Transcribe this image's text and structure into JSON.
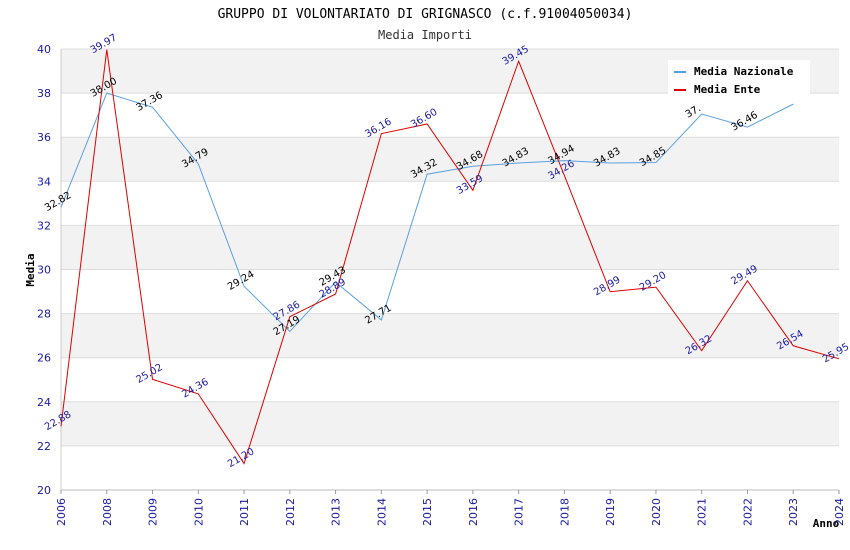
{
  "chart_data": {
    "type": "line",
    "title": "GRUPPO DI VOLONTARIATO DI GRIGNASCO (c.f.91004050034)",
    "subtitle": "Media Importi",
    "xlabel": "Anno",
    "ylabel": "Media",
    "ylim": [
      20,
      40
    ],
    "yticks": [
      20,
      22,
      24,
      26,
      28,
      30,
      32,
      34,
      36,
      38,
      40
    ],
    "categories": [
      "2006",
      "2008",
      "2009",
      "2010",
      "2011",
      "2012",
      "2013",
      "2014",
      "2015",
      "2016",
      "2017",
      "2018",
      "2019",
      "2020",
      "2021",
      "2022",
      "2023",
      "2024"
    ],
    "grid": true,
    "legend_position": "top-right",
    "series": [
      {
        "name": "Media Nazionale",
        "color": "#5aa0e0",
        "label_color": "#000000",
        "values": [
          32.82,
          38.0,
          37.36,
          34.79,
          29.24,
          27.19,
          29.43,
          27.71,
          34.32,
          34.68,
          34.83,
          34.94,
          34.83,
          34.85,
          37.05,
          36.46,
          37.5,
          null
        ],
        "labels": [
          "32.82",
          "38.00",
          "37.36",
          "34.79",
          "29.24",
          "27.19",
          "29.43",
          "27.71",
          "34.32",
          "34.68",
          "34.83",
          "34.94",
          "34.83",
          "34.85",
          "37.",
          "36.46",
          "",
          ""
        ]
      },
      {
        "name": "Media Ente",
        "color": "#e00000",
        "label_color": "#1a1aa0",
        "values": [
          22.88,
          39.97,
          25.02,
          24.36,
          21.2,
          27.86,
          28.89,
          36.16,
          36.6,
          33.59,
          39.45,
          34.26,
          28.99,
          29.2,
          26.32,
          29.49,
          26.54,
          25.95
        ],
        "labels": [
          "22.88",
          "39.97",
          "25.02",
          "24.36",
          "21.20",
          "27.86",
          "28.89",
          "36.16",
          "36.60",
          "33.59",
          "39.45",
          "34.26",
          "28.99",
          "29.20",
          "26.32",
          "29.49",
          "26.54",
          "25.95"
        ]
      }
    ]
  }
}
